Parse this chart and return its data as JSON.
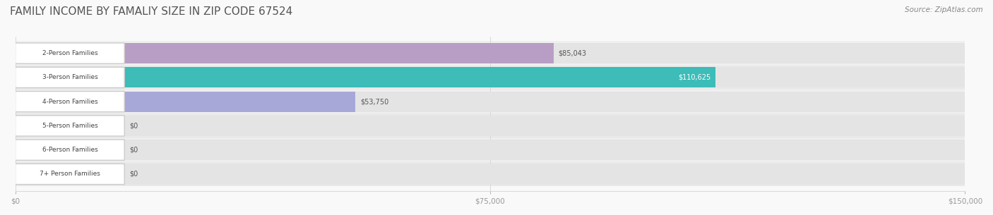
{
  "title": "FAMILY INCOME BY FAMALIY SIZE IN ZIP CODE 67524",
  "source": "Source: ZipAtlas.com",
  "categories": [
    "2-Person Families",
    "3-Person Families",
    "4-Person Families",
    "5-Person Families",
    "6-Person Families",
    "7+ Person Families"
  ],
  "values": [
    85043,
    110625,
    53750,
    0,
    0,
    0
  ],
  "bar_colors": [
    "#b89ec4",
    "#3dbcb8",
    "#a8a8d8",
    "#f4a0b0",
    "#f5c990",
    "#f5a898"
  ],
  "label_colors": [
    "#555555",
    "#ffffff",
    "#555555",
    "#555555",
    "#555555",
    "#555555"
  ],
  "bar_bg_color": "#eeeeee",
  "row_bg_colors": [
    "#f5f5f5",
    "#f0f0f0"
  ],
  "xlim": [
    0,
    150000
  ],
  "xticks": [
    0,
    75000,
    150000
  ],
  "xticklabels": [
    "$0",
    "$75,000",
    "$150,000"
  ],
  "value_labels": [
    "$85,043",
    "$110,625",
    "$53,750",
    "$0",
    "$0",
    "$0"
  ],
  "title_fontsize": 11,
  "bar_height": 0.55,
  "figsize": [
    14.06,
    3.05
  ],
  "dpi": 100
}
